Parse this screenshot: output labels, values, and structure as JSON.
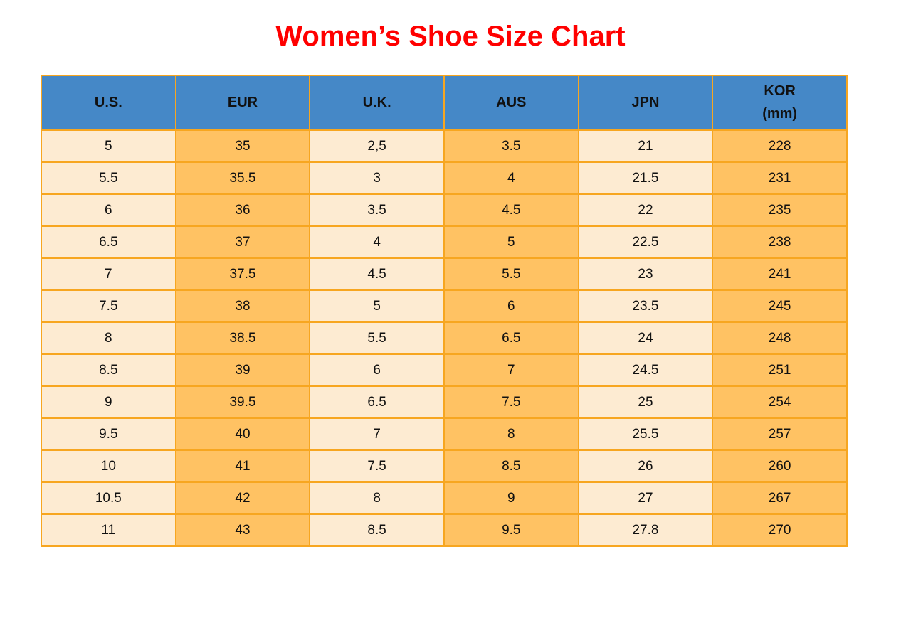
{
  "chart_data": {
    "type": "table",
    "title": "Women’s Shoe Size Chart",
    "columns": [
      {
        "label": "U.S."
      },
      {
        "label": "EUR"
      },
      {
        "label": "U.K."
      },
      {
        "label": "AUS"
      },
      {
        "label": "JPN"
      },
      {
        "label": "KOR",
        "sublabel": "(mm)"
      }
    ],
    "rows": [
      [
        "5",
        "35",
        "2,5",
        "3.5",
        "21",
        "228"
      ],
      [
        "5.5",
        "35.5",
        "3",
        "4",
        "21.5",
        "231"
      ],
      [
        "6",
        "36",
        "3.5",
        "4.5",
        "22",
        "235"
      ],
      [
        "6.5",
        "37",
        "4",
        "5",
        "22.5",
        "238"
      ],
      [
        "7",
        "37.5",
        "4.5",
        "5.5",
        "23",
        "241"
      ],
      [
        "7.5",
        "38",
        "5",
        "6",
        "23.5",
        "245"
      ],
      [
        "8",
        "38.5",
        "5.5",
        "6.5",
        "24",
        "248"
      ],
      [
        "8.5",
        "39",
        "6",
        "7",
        "24.5",
        "251"
      ],
      [
        "9",
        "39.5",
        "6.5",
        "7.5",
        "25",
        "254"
      ],
      [
        "9.5",
        "40",
        "7",
        "8",
        "25.5",
        "257"
      ],
      [
        "10",
        "41",
        "7.5",
        "8.5",
        "26",
        "260"
      ],
      [
        "10.5",
        "42",
        "8",
        "9",
        "27",
        "267"
      ],
      [
        "11",
        "43",
        "8.5",
        "9.5",
        "27.8",
        "270"
      ]
    ],
    "layout": {
      "striping": "columns",
      "odd_column_fill": "cream",
      "even_column_fill": "orange"
    }
  },
  "colors": {
    "title_red": "#ff0000",
    "header_blue": "#4588c7",
    "cell_cream": "#fdebd2",
    "cell_orange": "#ffc263",
    "border_orange": "#f7a620",
    "text_black": "#111111"
  }
}
